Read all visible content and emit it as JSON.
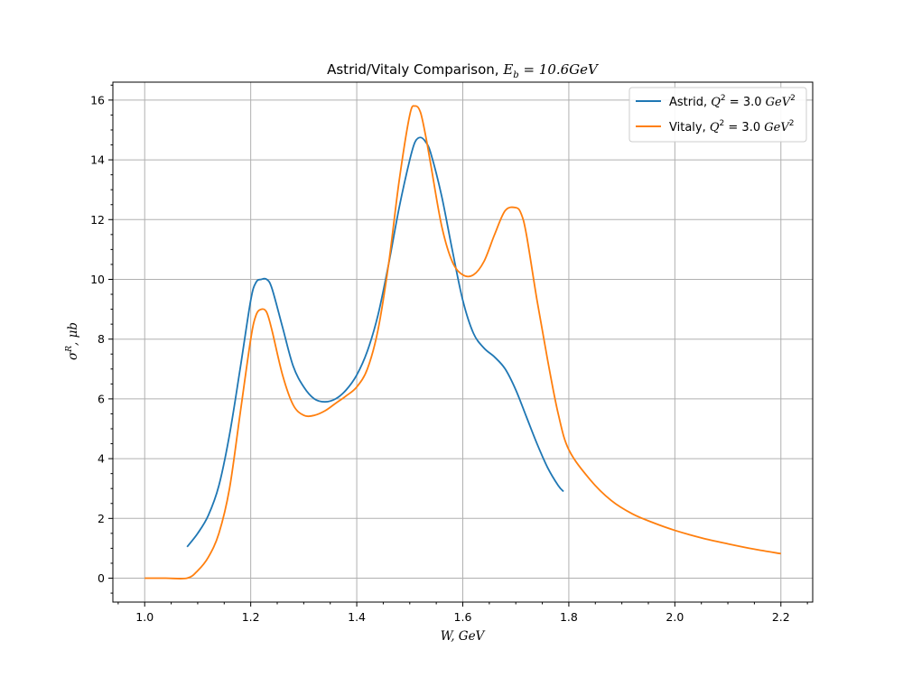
{
  "chart_data": {
    "type": "line",
    "title": {
      "prefix": "Astrid/Vitaly Comparison, ",
      "math": "E",
      "math_sub": "b",
      "math_rest": " = 10.6GeV"
    },
    "xlabel": "W, GeV",
    "ylabel": {
      "base": "σ",
      "sup": "R",
      "rest": ", μb"
    },
    "xlim": [
      0.94,
      2.26
    ],
    "ylim": [
      -0.8,
      16.6
    ],
    "xticks": [
      1.0,
      1.2,
      1.4,
      1.6,
      1.8,
      2.0,
      2.2
    ],
    "yticks": [
      0,
      2,
      4,
      6,
      8,
      10,
      12,
      14,
      16
    ],
    "grid": true,
    "legend_position": "top-right",
    "series": [
      {
        "name": "Astrid, Q² = 3.0 GeV²",
        "legend": {
          "prefix": "Astrid, ",
          "q": "Q",
          "q_sup": "2",
          "mid": " = 3.0 ",
          "unit": "GeV",
          "unit_sup": "2"
        },
        "color": "#1f77b4",
        "x": [
          1.08,
          1.1,
          1.12,
          1.14,
          1.16,
          1.18,
          1.2,
          1.21,
          1.22,
          1.23,
          1.24,
          1.26,
          1.28,
          1.3,
          1.32,
          1.34,
          1.36,
          1.38,
          1.4,
          1.42,
          1.44,
          1.46,
          1.48,
          1.5,
          1.51,
          1.52,
          1.53,
          1.54,
          1.56,
          1.58,
          1.6,
          1.62,
          1.64,
          1.66,
          1.68,
          1.7,
          1.72,
          1.74,
          1.76,
          1.78,
          1.79
        ],
        "y": [
          1.05,
          1.5,
          2.1,
          3.1,
          4.8,
          7.0,
          9.3,
          9.9,
          10.0,
          10.0,
          9.7,
          8.4,
          7.1,
          6.4,
          6.0,
          5.9,
          6.0,
          6.3,
          6.8,
          7.6,
          8.8,
          10.5,
          12.4,
          14.0,
          14.6,
          14.75,
          14.6,
          14.2,
          12.8,
          11.0,
          9.3,
          8.2,
          7.7,
          7.4,
          7.0,
          6.3,
          5.4,
          4.5,
          3.7,
          3.1,
          2.9
        ]
      },
      {
        "name": "Vitaly, Q² = 3.0 GeV²",
        "legend": {
          "prefix": "Vitaly, ",
          "q": "Q",
          "q_sup": "2",
          "mid": " = 3.0 ",
          "unit": "GeV",
          "unit_sup": "2"
        },
        "color": "#ff7f0e",
        "x": [
          1.0,
          1.04,
          1.08,
          1.1,
          1.12,
          1.14,
          1.16,
          1.18,
          1.2,
          1.21,
          1.22,
          1.23,
          1.24,
          1.26,
          1.28,
          1.3,
          1.32,
          1.34,
          1.36,
          1.38,
          1.4,
          1.42,
          1.44,
          1.46,
          1.48,
          1.5,
          1.51,
          1.52,
          1.53,
          1.54,
          1.56,
          1.58,
          1.6,
          1.62,
          1.64,
          1.66,
          1.68,
          1.7,
          1.71,
          1.72,
          1.74,
          1.76,
          1.78,
          1.8,
          1.84,
          1.88,
          1.92,
          1.96,
          2.0,
          2.05,
          2.1,
          2.15,
          2.2
        ],
        "y": [
          0.0,
          0.0,
          0.0,
          0.25,
          0.7,
          1.5,
          3.0,
          5.5,
          8.0,
          8.8,
          9.0,
          8.9,
          8.3,
          6.8,
          5.8,
          5.45,
          5.45,
          5.6,
          5.85,
          6.1,
          6.4,
          7.0,
          8.3,
          10.5,
          13.3,
          15.5,
          15.8,
          15.6,
          14.8,
          13.8,
          11.8,
          10.6,
          10.15,
          10.15,
          10.6,
          11.5,
          12.3,
          12.4,
          12.2,
          11.5,
          9.3,
          7.3,
          5.5,
          4.3,
          3.3,
          2.6,
          2.15,
          1.85,
          1.6,
          1.35,
          1.15,
          0.97,
          0.82
        ]
      }
    ]
  }
}
